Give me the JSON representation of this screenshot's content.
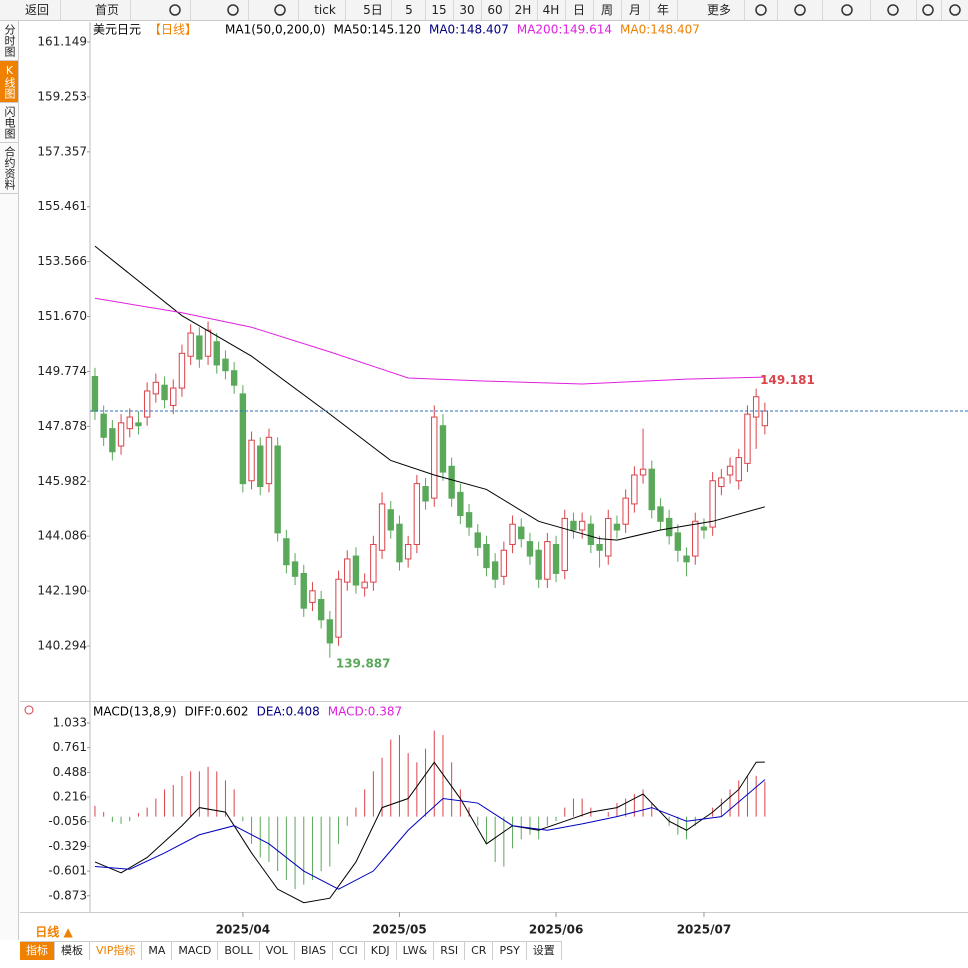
{
  "toolbar": [
    "返回",
    "首页",
    "tick",
    "5日",
    "5",
    "15",
    "30",
    "60",
    "2H",
    "4H",
    "日",
    "周",
    "月",
    "年",
    "更多"
  ],
  "sidebar": [
    "分时图",
    "K线图",
    "闪电图",
    "合约资料"
  ],
  "sidebar_active": 1,
  "period": "日线 ▲",
  "bottom_tabs": [
    "指标",
    "模板",
    "VIP指标",
    "MA",
    "MACD",
    "BOLL",
    "VOL",
    "BIAS",
    "CCI",
    "KDJ",
    "LW&",
    "RSI",
    "CR",
    "PSY",
    "设置"
  ],
  "chart_data": [
    {
      "type": "candlestick",
      "legend": [
        {
          "text": "美元日元",
          "color": "#000000"
        },
        {
          "text": "【日线】",
          "color": "#f08000"
        },
        {
          "text": "MA1(50,0,200,0)",
          "color": "#000000"
        },
        {
          "text": "MA50:145.120",
          "color": "#000000"
        },
        {
          "text": "MA0:148.407",
          "color": "#000080"
        },
        {
          "text": "MA200:149.614",
          "color": "#e020e0"
        },
        {
          "text": "MA0:148.407",
          "color": "#f08000"
        }
      ],
      "up_color": "#d9434a",
      "down_color": "#5aa85a",
      "xlim": [
        -0.57,
        100.35
      ],
      "xticks": [
        {
          "value": 17,
          "label": "2025/04"
        },
        {
          "value": 35,
          "label": "2025/05"
        },
        {
          "value": 53,
          "label": "2025/06"
        },
        {
          "value": 70,
          "label": "2025/07"
        }
      ],
      "ylim": [
        138.43,
        161.84
      ],
      "yticks": [
        161.149,
        159.253,
        157.357,
        155.461,
        153.566,
        {
          "value": 151.67,
          "label": "151.670"
        },
        149.774,
        147.878,
        145.982,
        144.086,
        {
          "value": 142.19,
          "label": "142.190"
        },
        140.294
      ],
      "grid": false,
      "last": 148.407,
      "x": [
        0,
        1,
        2,
        3,
        4,
        5,
        6,
        7,
        8,
        9,
        10,
        11,
        12,
        13,
        14,
        15,
        16,
        17,
        18,
        19,
        20,
        21,
        22,
        23,
        24,
        25,
        26,
        27,
        28,
        29,
        30,
        31,
        32,
        33,
        34,
        35,
        36,
        37,
        38,
        39,
        40,
        41,
        42,
        43,
        44,
        45,
        46,
        47,
        48,
        49,
        50,
        51,
        52,
        53,
        54,
        55,
        56,
        57,
        58,
        59,
        60,
        61,
        62,
        63,
        64,
        65,
        66,
        67,
        68,
        69,
        70,
        71,
        72,
        73,
        74,
        75,
        76,
        77
      ],
      "open": [
        149.6,
        148.3,
        147.8,
        147.2,
        147.8,
        148.0,
        148.2,
        149.0,
        149.3,
        148.6,
        149.2,
        150.3,
        151.0,
        150.3,
        150.8,
        150.2,
        149.8,
        149.0,
        146.0,
        147.2,
        145.9,
        147.2,
        144.0,
        143.2,
        142.8,
        141.8,
        141.9,
        141.2,
        140.6,
        142.5,
        143.4,
        142.3,
        142.5,
        143.6,
        145.0,
        144.5,
        143.3,
        143.8,
        145.8,
        145.4,
        147.9,
        146.5,
        145.6,
        144.9,
        144.2,
        143.8,
        143.2,
        142.7,
        143.8,
        144.4,
        143.9,
        143.6,
        142.6,
        143.8,
        142.9,
        144.6,
        144.3,
        144.5,
        143.8,
        143.4,
        144.5,
        144.5,
        145.2,
        146.2,
        146.4,
        145.1,
        144.7,
        144.2,
        143.4,
        143.4,
        144.4,
        144.4,
        145.8,
        146.2,
        146.0,
        146.6,
        148.2,
        147.9
      ],
      "high": [
        149.9,
        148.6,
        148.1,
        148.3,
        148.5,
        148.4,
        149.4,
        149.7,
        149.6,
        149.5,
        150.7,
        151.4,
        151.3,
        151.5,
        151.1,
        150.5,
        150.1,
        149.3,
        147.7,
        147.5,
        147.8,
        147.5,
        144.3,
        143.5,
        143.1,
        142.5,
        142.2,
        141.5,
        142.9,
        143.6,
        143.7,
        142.8,
        144.1,
        145.6,
        145.3,
        144.8,
        144.1,
        146.2,
        146.1,
        148.6,
        148.3,
        146.8,
        145.9,
        145.2,
        144.5,
        144.1,
        143.5,
        143.9,
        144.8,
        144.7,
        144.2,
        143.9,
        144.2,
        144.1,
        145.0,
        144.9,
        144.9,
        144.8,
        144.1,
        145.0,
        144.8,
        145.7,
        146.5,
        147.8,
        146.7,
        145.4,
        145.0,
        144.5,
        143.7,
        144.9,
        144.7,
        146.3,
        146.4,
        146.8,
        147.1,
        148.6,
        149.181,
        148.7
      ],
      "low": [
        148.1,
        147.2,
        146.7,
        146.9,
        147.5,
        147.6,
        147.9,
        148.7,
        148.5,
        148.3,
        148.9,
        150.0,
        149.9,
        150.0,
        149.7,
        149.5,
        149.0,
        145.6,
        145.7,
        145.5,
        145.6,
        143.9,
        142.8,
        142.4,
        141.3,
        141.5,
        140.9,
        139.887,
        140.3,
        142.2,
        142.1,
        142.0,
        142.2,
        143.3,
        144.0,
        142.9,
        143.0,
        143.5,
        145.0,
        145.1,
        146.0,
        145.1,
        144.5,
        144.1,
        143.4,
        142.7,
        142.3,
        142.4,
        143.5,
        143.7,
        143.1,
        142.3,
        142.3,
        142.5,
        142.6,
        144.0,
        144.0,
        143.5,
        143.0,
        143.1,
        144.0,
        144.2,
        144.9,
        145.9,
        144.7,
        144.3,
        143.8,
        143.2,
        142.7,
        143.1,
        144.0,
        144.1,
        145.5,
        145.9,
        145.7,
        146.3,
        147.1,
        147.6
      ],
      "close": [
        148.4,
        147.5,
        147.0,
        148.0,
        148.2,
        147.9,
        149.1,
        149.4,
        148.8,
        149.2,
        150.4,
        151.1,
        150.2,
        151.2,
        150.0,
        149.8,
        149.3,
        145.9,
        147.4,
        145.8,
        147.5,
        144.2,
        143.1,
        142.7,
        141.6,
        142.2,
        141.2,
        140.4,
        142.6,
        143.3,
        142.4,
        142.5,
        143.8,
        145.2,
        144.3,
        143.2,
        143.8,
        145.9,
        145.3,
        148.2,
        146.3,
        145.4,
        144.8,
        144.4,
        143.7,
        143.0,
        142.6,
        143.6,
        144.5,
        144.0,
        143.4,
        142.6,
        143.9,
        142.8,
        144.7,
        144.3,
        144.6,
        143.8,
        143.6,
        144.7,
        144.3,
        145.4,
        146.2,
        146.4,
        145.0,
        144.6,
        144.1,
        143.6,
        143.2,
        144.6,
        144.3,
        146.0,
        146.1,
        146.5,
        146.8,
        148.3,
        148.9,
        148.407
      ],
      "series": [
        {
          "color": "#000000",
          "x": [
            0,
            10,
            18,
            27,
            34,
            39,
            45,
            51,
            58,
            60,
            65,
            71,
            77
          ],
          "values": [
            154.1,
            151.7,
            150.3,
            148.3,
            146.7,
            146.2,
            145.7,
            144.6,
            144.0,
            143.95,
            144.3,
            144.6,
            145.1
          ]
        },
        {
          "color": "#e020e0",
          "x": [
            0,
            10,
            18,
            27,
            36,
            45,
            56,
            68,
            77
          ],
          "values": [
            152.3,
            151.8,
            151.3,
            150.45,
            149.55,
            149.44,
            149.34,
            149.51,
            149.58
          ]
        }
      ]
    },
    {
      "type": "macd",
      "legend": [
        {
          "text": "MACD(13,8,9)",
          "color": "#000000"
        },
        {
          "text": "DIFF:0.602",
          "color": "#000000"
        },
        {
          "text": "DEA:0.408",
          "color": "#000080"
        },
        {
          "text": "MACD:0.387",
          "color": "#e020e0"
        }
      ],
      "up_color": "#d9434a",
      "down_color": "#5aa85a",
      "xlim": [
        -0.57,
        100.35
      ],
      "ylim": [
        -1.052,
        1.254
      ],
      "yticks": [
        1.033,
        0.761,
        0.488,
        0.216,
        -0.056,
        -0.329,
        -0.601,
        -0.873
      ],
      "x": [
        0,
        1,
        2,
        3,
        4,
        5,
        6,
        7,
        8,
        9,
        10,
        11,
        12,
        13,
        14,
        15,
        16,
        17,
        18,
        19,
        20,
        21,
        22,
        23,
        24,
        25,
        26,
        27,
        28,
        29,
        30,
        31,
        32,
        33,
        34,
        35,
        36,
        37,
        38,
        39,
        40,
        41,
        42,
        43,
        44,
        45,
        46,
        47,
        48,
        49,
        50,
        51,
        52,
        53,
        54,
        55,
        56,
        57,
        58,
        59,
        60,
        61,
        62,
        63,
        64,
        65,
        66,
        67,
        68,
        69,
        70,
        71,
        72,
        73,
        74,
        75,
        76,
        77
      ],
      "values": [
        0.12,
        0.05,
        -0.06,
        -0.08,
        -0.05,
        0.04,
        0.1,
        0.2,
        0.3,
        0.35,
        0.45,
        0.5,
        0.5,
        0.55,
        0.5,
        0.4,
        0.3,
        -0.05,
        -0.3,
        -0.45,
        -0.5,
        -0.6,
        -0.7,
        -0.8,
        -0.75,
        -0.7,
        -0.6,
        -0.55,
        -0.3,
        -0.1,
        0.1,
        0.3,
        0.5,
        0.65,
        0.85,
        0.9,
        0.7,
        0.6,
        0.75,
        0.95,
        0.9,
        0.6,
        0.3,
        0.1,
        -0.1,
        -0.3,
        -0.5,
        -0.55,
        -0.35,
        -0.25,
        -0.2,
        -0.25,
        -0.1,
        -0.05,
        0.1,
        0.2,
        0.2,
        0.1,
        0.0,
        0.05,
        0.15,
        0.2,
        0.25,
        0.3,
        0.15,
        0.0,
        -0.1,
        -0.2,
        -0.25,
        -0.1,
        0.0,
        0.1,
        0.2,
        0.3,
        0.4,
        0.45,
        0.45,
        0.387
      ],
      "series": [
        {
          "color": "#000000",
          "x": [
            0,
            3,
            6,
            10,
            12,
            15,
            18,
            21,
            24,
            27,
            30,
            33,
            36,
            39,
            42,
            45,
            48,
            51,
            54,
            57,
            60,
            63,
            66,
            68,
            71,
            74,
            76,
            77
          ],
          "values": [
            -0.5,
            -0.62,
            -0.45,
            -0.1,
            0.1,
            0.05,
            -0.4,
            -0.8,
            -0.95,
            -0.9,
            -0.5,
            0.1,
            0.2,
            0.6,
            0.2,
            -0.3,
            -0.1,
            -0.15,
            -0.05,
            0.05,
            0.1,
            0.25,
            -0.05,
            -0.15,
            0.05,
            0.3,
            0.6,
            0.602
          ]
        },
        {
          "color": "#0000c0",
          "x": [
            0,
            4,
            8,
            12,
            16,
            20,
            24,
            28,
            32,
            36,
            40,
            44,
            48,
            52,
            56,
            60,
            64,
            68,
            72,
            77
          ],
          "values": [
            -0.55,
            -0.58,
            -0.4,
            -0.2,
            -0.1,
            -0.3,
            -0.6,
            -0.8,
            -0.6,
            -0.15,
            0.2,
            0.15,
            -0.1,
            -0.15,
            -0.08,
            0.0,
            0.1,
            -0.05,
            0.0,
            0.408
          ]
        }
      ]
    }
  ]
}
